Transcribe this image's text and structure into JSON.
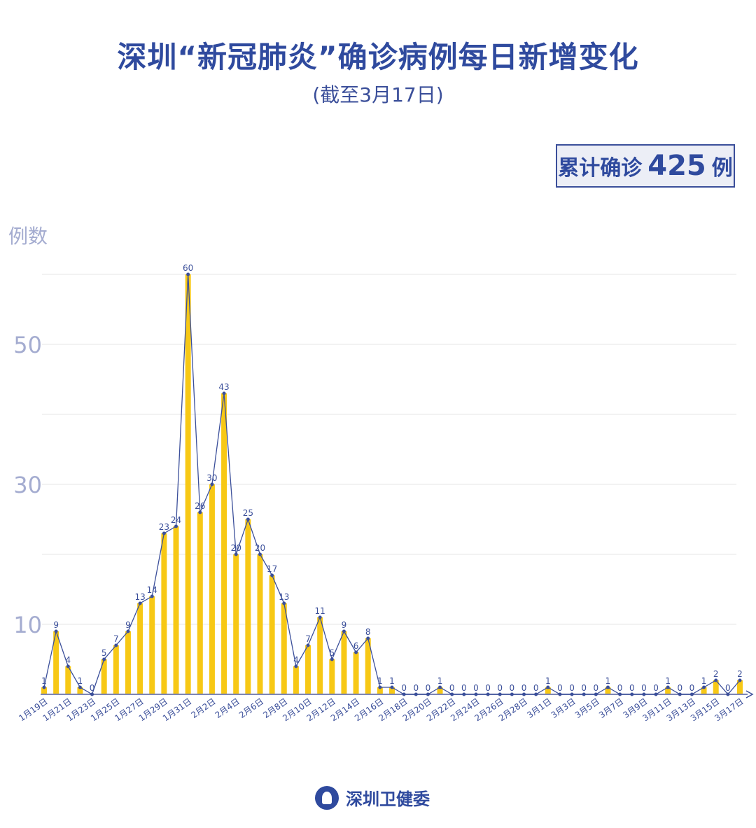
{
  "header": {
    "title": "深圳“新冠肺炎”确诊病例每日新增变化",
    "subtitle": "(截至3月17日)"
  },
  "badge": {
    "prefix": "累计确诊",
    "total": "425",
    "suffix": "例"
  },
  "footer": {
    "org": "深圳卫健委"
  },
  "colors": {
    "bar": "#f7c815",
    "line": "#3b4f9a",
    "text": "#2f4a9e"
  },
  "chart_data": {
    "type": "bar+line",
    "ylabel": "例数",
    "ylim": [
      0,
      60
    ],
    "yticks": [
      10,
      30,
      50
    ],
    "grid": true,
    "x": [
      "1月19日",
      "1月20日",
      "1月21日",
      "1月22日",
      "1月23日",
      "1月24日",
      "1月25日",
      "1月26日",
      "1月27日",
      "1月28日",
      "1月29日",
      "1月30日",
      "1月31日",
      "2月1日",
      "2月2日",
      "2月3日",
      "2月4日",
      "2月5日",
      "2月6日",
      "2月7日",
      "2月8日",
      "2月9日",
      "2月10日",
      "2月11日",
      "2月12日",
      "2月13日",
      "2月14日",
      "2月15日",
      "2月16日",
      "2月17日",
      "2月18日",
      "2月19日",
      "2月20日",
      "2月21日",
      "2月22日",
      "2月23日",
      "2月24日",
      "2月25日",
      "2月26日",
      "2月27日",
      "2月28日",
      "2月29日",
      "3月1日",
      "3月2日",
      "3月3日",
      "3月4日",
      "3月5日",
      "3月6日",
      "3月7日",
      "3月8日",
      "3月9日",
      "3月10日",
      "3月11日",
      "3月12日",
      "3月13日",
      "3月14日",
      "3月15日",
      "3月16日",
      "3月17日"
    ],
    "values": [
      1,
      9,
      4,
      1,
      0,
      5,
      7,
      9,
      13,
      14,
      23,
      24,
      60,
      26,
      30,
      43,
      20,
      25,
      20,
      17,
      13,
      4,
      7,
      11,
      5,
      9,
      6,
      8,
      1,
      1,
      0,
      0,
      0,
      1,
      0,
      0,
      0,
      0,
      0,
      0,
      0,
      0,
      1,
      0,
      0,
      0,
      0,
      1,
      0,
      0,
      0,
      0,
      1,
      0,
      0,
      1,
      2,
      0,
      2
    ]
  }
}
